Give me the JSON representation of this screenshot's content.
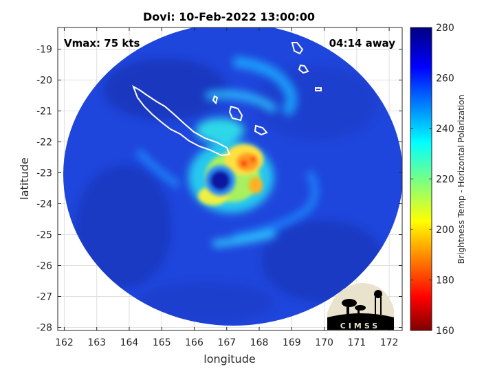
{
  "title": "Dovi: 10-Feb-2022 13:00:00",
  "vmax_text": "Vmax: 75 kts",
  "away_text": "04:14 away",
  "logo_text": "CIMSS",
  "chart_data": {
    "type": "heatmap",
    "xlabel": "longitude",
    "ylabel": "latitude",
    "xlim": [
      161.8,
      172.4
    ],
    "ylim": [
      -28.1,
      -18.3
    ],
    "xticks": [
      162,
      163,
      164,
      165,
      166,
      167,
      168,
      169,
      170,
      171,
      172
    ],
    "yticks": [
      -19,
      -20,
      -21,
      -22,
      -23,
      -24,
      -25,
      -26,
      -27,
      -28
    ],
    "grid": true,
    "colorbar": {
      "label": "Brightness Temp - Horizontal Polarization",
      "min": 160,
      "max": 280,
      "ticks": [
        280,
        260,
        240,
        220,
        200,
        180,
        160
      ],
      "colormap": "jet"
    },
    "storm_center": {
      "lon": 166.8,
      "lat": -23.25
    },
    "eye_radius_deg": 0.35,
    "swath_center": {
      "lon": 167.0,
      "lat": -23.2
    },
    "colors": {
      "background_blue": "#1a44d8",
      "coast": "#ffffff"
    }
  }
}
